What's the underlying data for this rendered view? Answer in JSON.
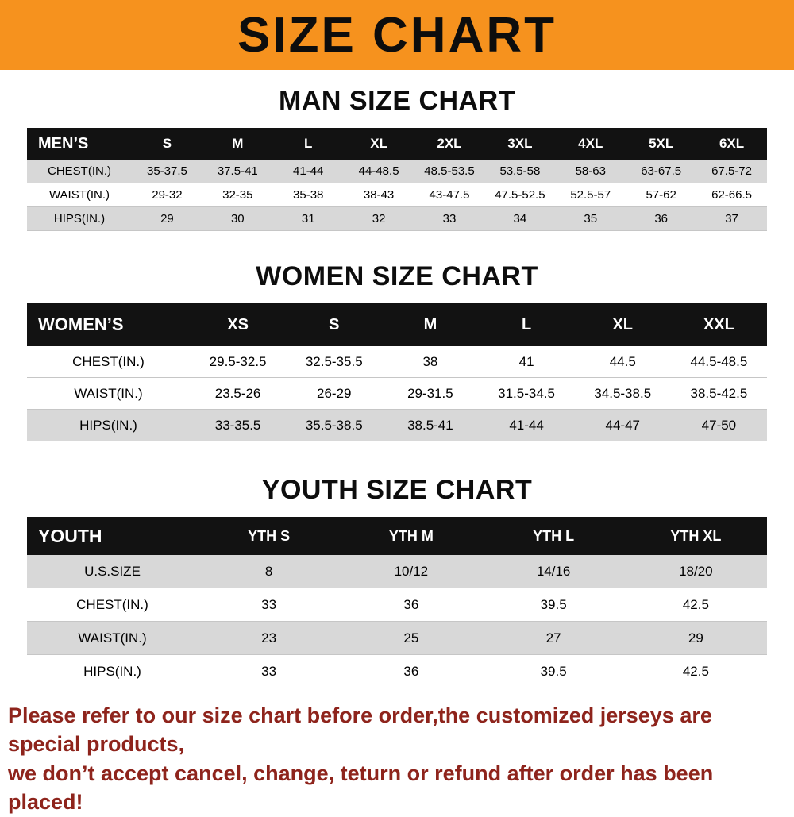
{
  "banner": {
    "title": "SIZE CHART"
  },
  "men": {
    "heading": "MAN SIZE CHART",
    "header_label": "MEN’S",
    "sizes": [
      "S",
      "M",
      "L",
      "XL",
      "2XL",
      "3XL",
      "4XL",
      "5XL",
      "6XL"
    ],
    "rows": [
      {
        "label": "CHEST(IN.)",
        "values": [
          "35-37.5",
          "37.5-41",
          "41-44",
          "44-48.5",
          "48.5-53.5",
          "53.5-58",
          "58-63",
          "63-67.5",
          "67.5-72"
        ]
      },
      {
        "label": "WAIST(IN.)",
        "values": [
          "29-32",
          "32-35",
          "35-38",
          "38-43",
          "43-47.5",
          "47.5-52.5",
          "52.5-57",
          "57-62",
          "62-66.5"
        ]
      },
      {
        "label": "HIPS(IN.)",
        "values": [
          "29",
          "30",
          "31",
          "32",
          "33",
          "34",
          "35",
          "36",
          "37"
        ]
      }
    ]
  },
  "women": {
    "heading": "WOMEN SIZE CHART",
    "header_label": "WOMEN’S",
    "sizes": [
      "XS",
      "S",
      "M",
      "L",
      "XL",
      "XXL"
    ],
    "rows": [
      {
        "label": "CHEST(IN.)",
        "values": [
          "29.5-32.5",
          "32.5-35.5",
          "38",
          "41",
          "44.5",
          "44.5-48.5"
        ]
      },
      {
        "label": "WAIST(IN.)",
        "values": [
          "23.5-26",
          "26-29",
          "29-31.5",
          "31.5-34.5",
          "34.5-38.5",
          "38.5-42.5"
        ]
      },
      {
        "label": "HIPS(IN.)",
        "values": [
          "33-35.5",
          "35.5-38.5",
          "38.5-41",
          "41-44",
          "44-47",
          "47-50"
        ]
      }
    ]
  },
  "youth": {
    "heading": "YOUTH SIZE CHART",
    "header_label": "YOUTH",
    "sizes": [
      "YTH S",
      "YTH M",
      "YTH L",
      "YTH XL"
    ],
    "rows": [
      {
        "label": "U.S.SIZE",
        "values": [
          "8",
          "10/12",
          "14/16",
          "18/20"
        ]
      },
      {
        "label": "CHEST(IN.)",
        "values": [
          "33",
          "36",
          "39.5",
          "42.5"
        ]
      },
      {
        "label": "WAIST(IN.)",
        "values": [
          "23",
          "25",
          "27",
          "29"
        ]
      },
      {
        "label": "HIPS(IN.)",
        "values": [
          "33",
          "36",
          "39.5",
          "42.5"
        ]
      }
    ]
  },
  "footer": {
    "line1": "Please refer to our size chart before order,the customized jerseys are special products,",
    "line2": "we don’t accept cancel, change, teturn or refund after order has been placed!"
  },
  "colors": {
    "banner_bg": "#F6921E",
    "table_header_bg": "#121212",
    "row_alt_bg": "#D8D8D8",
    "footer_text": "#8E241C"
  }
}
